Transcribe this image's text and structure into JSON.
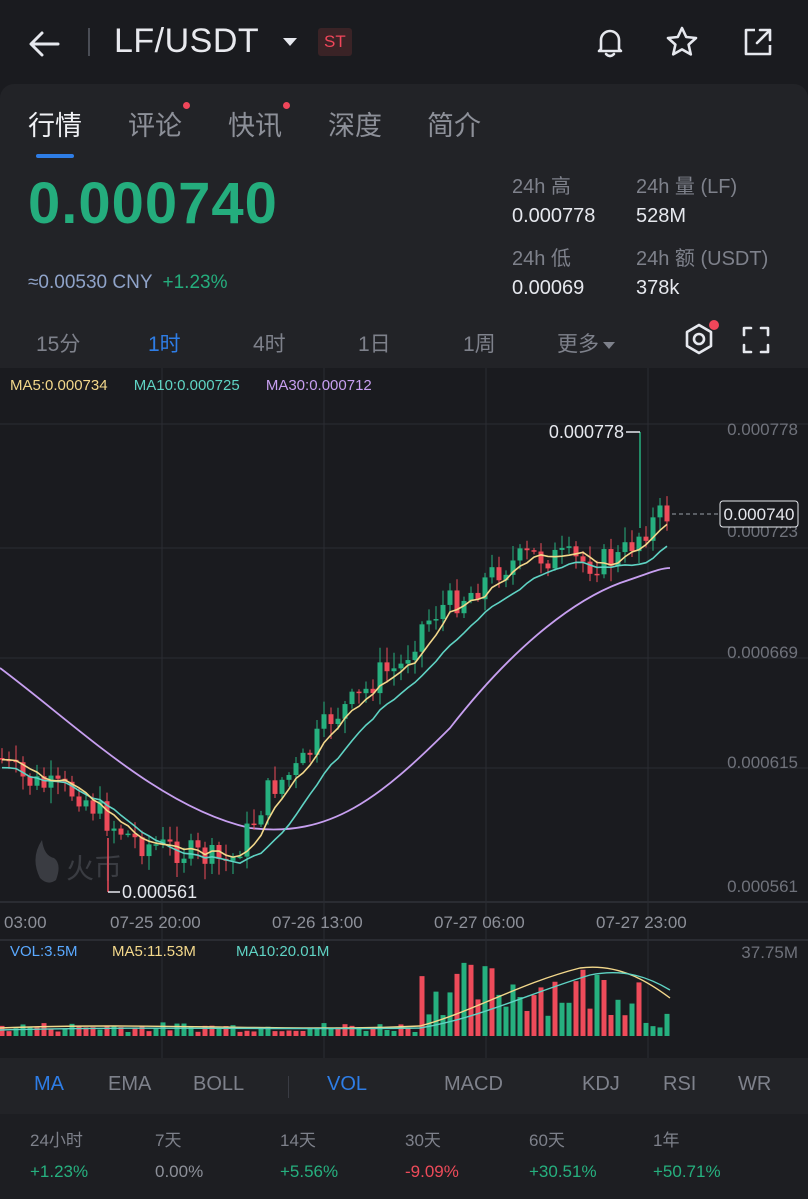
{
  "header": {
    "pair": "LF/USDT",
    "badge": "ST"
  },
  "tabs": [
    {
      "label": "行情",
      "active": true,
      "dot": false
    },
    {
      "label": "评论",
      "active": false,
      "dot": true
    },
    {
      "label": "快讯",
      "active": false,
      "dot": true
    },
    {
      "label": "深度",
      "active": false,
      "dot": false
    },
    {
      "label": "简介",
      "active": false,
      "dot": false
    }
  ],
  "price": {
    "last": "0.000740",
    "cny": "≈0.00530 CNY",
    "change": "+1.23%"
  },
  "stats": {
    "high_label": "24h 高",
    "high_value": "0.000778",
    "vol_label": "24h 量 (LF)",
    "vol_value": "528M",
    "low_label": "24h 低",
    "low_value": "0.00069",
    "amount_label": "24h 额 (USDT)",
    "amount_value": "378k"
  },
  "timeframes": [
    "15分",
    "1时",
    "4时",
    "1日",
    "1周",
    "更多"
  ],
  "active_timeframe": "1时",
  "ma_legend": {
    "ma5": "MA5:0.000734",
    "ma10": "MA10:0.000725",
    "ma30": "MA30:0.000712"
  },
  "chart_data": {
    "type": "candlestick",
    "y_ticks": [
      "0.000778",
      "0.000723",
      "0.000669",
      "0.000615",
      "0.000561"
    ],
    "x_ticks": [
      "03:00",
      "07-25 20:00",
      "07-26 13:00",
      "07-27 06:00",
      "07-27 23:00"
    ],
    "high_marker": "0.000778",
    "low_marker": "0.000561",
    "last_price_tag": "0.000740",
    "watermark": "火币",
    "colors": {
      "up": "#26b07f",
      "down": "#ee4b5a",
      "ma5": "#f3d88b",
      "ma10": "#5fd3c4",
      "ma30": "#c79ff0"
    }
  },
  "volume": {
    "vol_label": "VOL:3.5M",
    "ma5_label": "MA5:11.53M",
    "ma10_label": "MA10:20.01M",
    "max_label": "37.75M"
  },
  "indicators": [
    "MA",
    "EMA",
    "BOLL",
    "VOL",
    "MACD",
    "KDJ",
    "RSI",
    "WR"
  ],
  "performance": [
    {
      "label": "24小时",
      "value": "+1.23%",
      "color": "#26b07f"
    },
    {
      "label": "7天",
      "value": "0.00%",
      "color": "#8d9099"
    },
    {
      "label": "14天",
      "value": "+5.56%",
      "color": "#26b07f"
    },
    {
      "label": "30天",
      "value": "-9.09%",
      "color": "#ee4b5a"
    },
    {
      "label": "60天",
      "value": "+30.51%",
      "color": "#26b07f"
    },
    {
      "label": "1年",
      "value": "+50.71%",
      "color": "#26b07f"
    }
  ]
}
